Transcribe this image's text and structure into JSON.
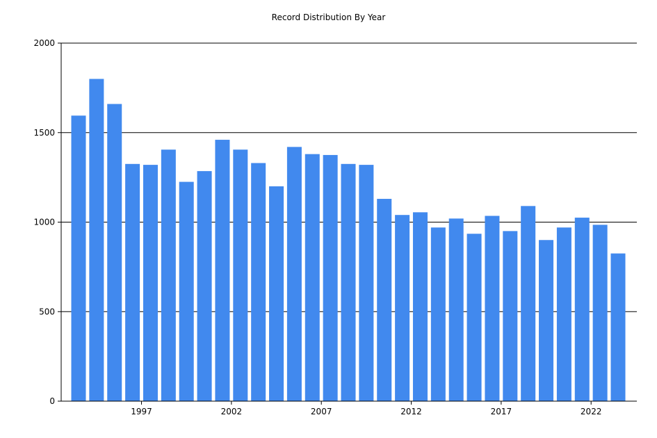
{
  "chart_data": {
    "type": "bar",
    "title": "Record Distribution By Year",
    "xlabel": "",
    "ylabel": "",
    "ylim": [
      0,
      2000
    ],
    "y_ticks": [
      0,
      500,
      1000,
      1500,
      2000
    ],
    "x_tick_labels": [
      "1997",
      "2002",
      "2007",
      "2012",
      "2017",
      "2022"
    ],
    "categories": [
      1994,
      1995,
      1996,
      1997,
      1998,
      1999,
      2000,
      2001,
      2002,
      2003,
      2004,
      2005,
      2006,
      2007,
      2008,
      2009,
      2010,
      2011,
      2012,
      2013,
      2014,
      2015,
      2016,
      2017,
      2018,
      2019,
      2020,
      2021,
      2022,
      2023,
      2024
    ],
    "values": [
      1595,
      1800,
      1660,
      1325,
      1320,
      1405,
      1225,
      1285,
      1460,
      1405,
      1330,
      1200,
      1420,
      1380,
      1375,
      1325,
      1320,
      1130,
      1040,
      1055,
      970,
      1020,
      935,
      1035,
      950,
      1090,
      900,
      970,
      1025,
      985,
      825
    ],
    "bar_color": "#4189EE",
    "grid": true
  }
}
